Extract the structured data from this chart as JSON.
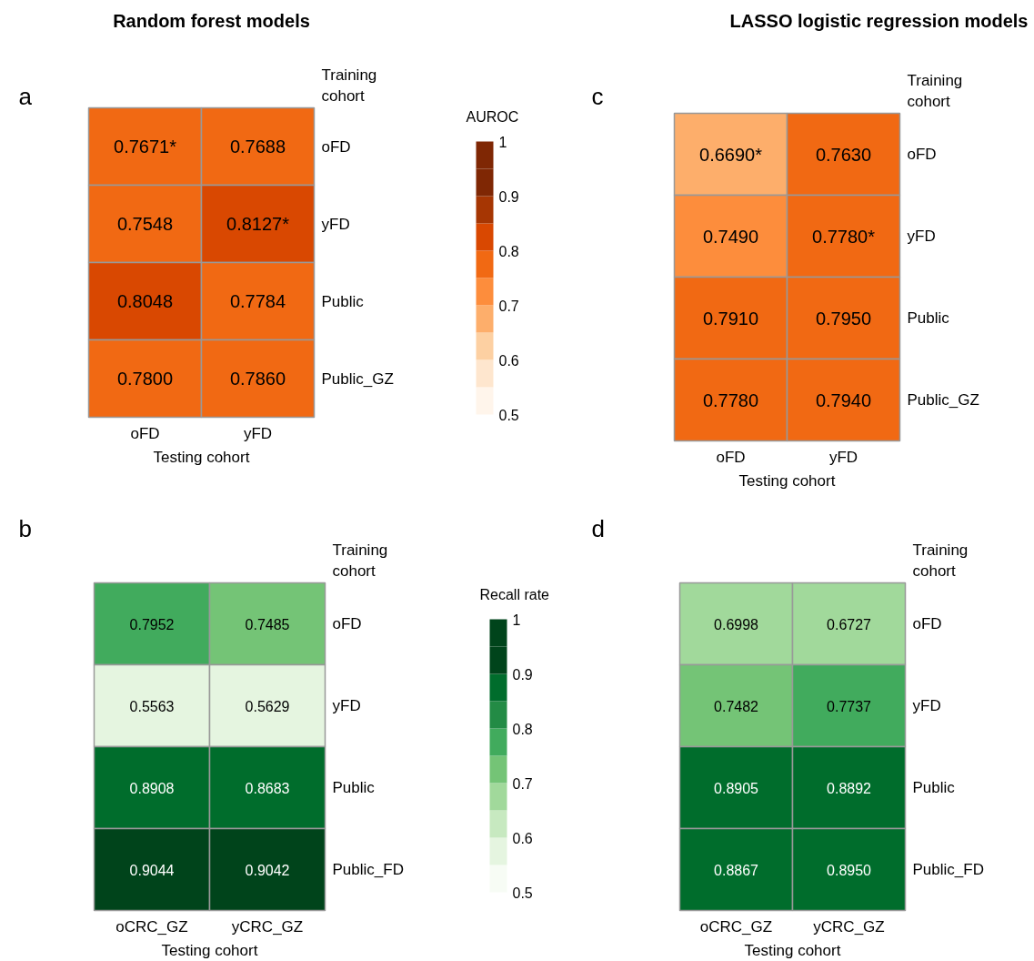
{
  "chart_data": [
    {
      "type": "heatmap",
      "title": "Random forest models",
      "annotations": [
        "a"
      ],
      "xlabel": "Testing cohort",
      "ylabel": "Training cohort",
      "categories": [
        "oFD",
        "yFD"
      ],
      "y_categories": [
        "oFD",
        "yFD",
        "Public",
        "Public_GZ"
      ],
      "cells": [
        [
          0.7671,
          0.7688
        ],
        [
          0.7548,
          0.8127
        ],
        [
          0.8048,
          0.7784
        ],
        [
          0.78,
          0.786
        ]
      ],
      "cell_labels": [
        [
          "0.7671*",
          "0.7688"
        ],
        [
          "0.7548",
          "0.8127*"
        ],
        [
          "0.8048",
          "0.7784"
        ],
        [
          "0.7800",
          "0.7860"
        ]
      ],
      "clabel": "AUROC",
      "clim": [
        0.5,
        1
      ],
      "cticks": [
        0.5,
        0.6,
        0.7,
        0.8,
        0.9,
        1
      ],
      "colors": [
        "#fff5eb",
        "#fee6ce",
        "#fdd0a2",
        "#fdae6b",
        "#fd8d3c",
        "#f16913",
        "#d94801",
        "#a63603",
        "#7f2704",
        "#7f2704"
      ]
    },
    {
      "type": "heatmap",
      "title": "LASSO logistic regression models",
      "annotations": [
        "c"
      ],
      "xlabel": "Testing cohort",
      "ylabel": "Training cohort",
      "categories": [
        "oFD",
        "yFD"
      ],
      "y_categories": [
        "oFD",
        "yFD",
        "Public",
        "Public_GZ"
      ],
      "cells": [
        [
          0.669,
          0.763
        ],
        [
          0.749,
          0.778
        ],
        [
          0.791,
          0.795
        ],
        [
          0.778,
          0.794
        ]
      ],
      "cell_labels": [
        [
          "0.6690*",
          "0.7630"
        ],
        [
          "0.7490",
          "0.7780*"
        ],
        [
          "0.7910",
          "0.7950"
        ],
        [
          "0.7780",
          "0.7940"
        ]
      ],
      "colors": [
        "#fff5eb",
        "#fee6ce",
        "#fdd0a2",
        "#fdae6b",
        "#fd8d3c",
        "#f16913",
        "#d94801",
        "#a63603",
        "#7f2704",
        "#7f2704"
      ]
    },
    {
      "type": "heatmap",
      "annotations": [
        "b"
      ],
      "xlabel": "Testing cohort",
      "ylabel": "Training cohort",
      "categories": [
        "oCRC_GZ",
        "yCRC_GZ"
      ],
      "y_categories": [
        "oFD",
        "yFD",
        "Public",
        "Public_FD"
      ],
      "cells": [
        [
          0.7952,
          0.7485
        ],
        [
          0.5563,
          0.5629
        ],
        [
          0.8908,
          0.8683
        ],
        [
          0.9044,
          0.9042
        ]
      ],
      "cell_labels": [
        [
          "0.7952",
          "0.7485"
        ],
        [
          "0.5563",
          "0.5629"
        ],
        [
          "0.8908",
          "0.8683"
        ],
        [
          "0.9044",
          "0.9042"
        ]
      ],
      "clabel": "Recall rate",
      "clim": [
        0.5,
        1
      ],
      "cticks": [
        0.5,
        0.6,
        0.7,
        0.8,
        0.9,
        1
      ],
      "colors": [
        "#f7fcf5",
        "#e5f5e0",
        "#c7e9c0",
        "#a1d99b",
        "#74c476",
        "#41ab5d",
        "#238b45",
        "#006d2c",
        "#00441b",
        "#00441b"
      ]
    },
    {
      "type": "heatmap",
      "annotations": [
        "d"
      ],
      "xlabel": "Testing cohort",
      "ylabel": "Training cohort",
      "categories": [
        "oCRC_GZ",
        "yCRC_GZ"
      ],
      "y_categories": [
        "oFD",
        "yFD",
        "Public",
        "Public_FD"
      ],
      "cells": [
        [
          0.6998,
          0.6727
        ],
        [
          0.7482,
          0.7737
        ],
        [
          0.8905,
          0.8892
        ],
        [
          0.8867,
          0.895
        ]
      ],
      "cell_labels": [
        [
          "0.6998",
          "0.6727"
        ],
        [
          "0.7482",
          "0.7737"
        ],
        [
          "0.8905",
          "0.8892"
        ],
        [
          "0.8867",
          "0.8950"
        ]
      ],
      "colors": [
        "#f7fcf5",
        "#e5f5e0",
        "#c7e9c0",
        "#a1d99b",
        "#74c476",
        "#41ab5d",
        "#238b45",
        "#006d2c",
        "#00441b",
        "#00441b"
      ]
    }
  ]
}
